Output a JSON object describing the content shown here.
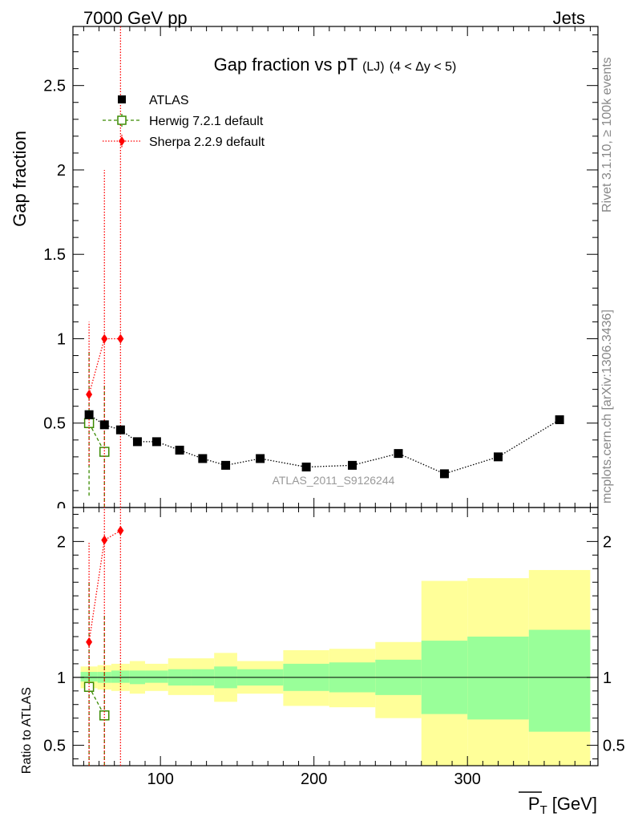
{
  "header": {
    "energy_label": "7000 GeV pp",
    "process_label": "Jets",
    "side_rivet": "Rivet 3.1.10, ≥ 100k events",
    "side_mcplots": "mcplots.cern.ch [arXiv:1306.3436]",
    "analysis_id": "ATLAS_2011_S9126244"
  },
  "chart_data": [
    {
      "type": "scatter",
      "title": "Gap fraction vs pT",
      "title_suffix": "(LJ)",
      "title_cut": "(4 < Δy < 5)",
      "ylabel": "Gap fraction",
      "xlim": [
        43,
        385
      ],
      "ylim": [
        0,
        2.85
      ],
      "yticks": [
        0,
        0.5,
        1,
        1.5,
        2,
        2.5
      ],
      "ytick_labels": [
        "0",
        "0.5",
        "1",
        "1.5",
        "2",
        "2.5"
      ],
      "legend_position": "top-left",
      "series": [
        {
          "name": "ATLAS",
          "color": "#000000",
          "marker": "filled-square",
          "x": [
            53.5,
            63.5,
            74,
            85,
            97.5,
            112.5,
            127.5,
            142.5,
            165,
            195,
            225,
            255,
            285,
            320,
            360
          ],
          "y": [
            0.55,
            0.49,
            0.46,
            0.39,
            0.39,
            0.34,
            0.29,
            0.25,
            0.29,
            0.24,
            0.25,
            0.32,
            0.2,
            0.3,
            0.52
          ]
        },
        {
          "name": "Herwig 7.2.1 default",
          "color": "#3a8a00",
          "marker": "open-square",
          "x": [
            53.5,
            63.5
          ],
          "y": [
            0.5,
            0.33
          ],
          "err_lo": [
            0.07,
            0.0
          ],
          "err_hi": [
            0.93,
            0.72
          ]
        },
        {
          "name": "Sherpa 2.2.9 default",
          "color": "#ff0000",
          "marker": "filled-diamond",
          "x": [
            53.5,
            63.5,
            74
          ],
          "y": [
            0.67,
            1.0,
            1.0
          ],
          "err_lo": [
            0.25,
            0.0,
            0.0
          ],
          "err_hi": [
            1.1,
            2.0,
            2.85
          ]
        }
      ]
    },
    {
      "type": "scatter",
      "ylabel": "Ratio to ATLAS",
      "xlabel": "P_T [GeV]",
      "xlabel_main": "P",
      "xlabel_sub": "T",
      "xlabel_unit": "[GeV]",
      "xlim": [
        43,
        385
      ],
      "ylim": [
        0.35,
        2.25
      ],
      "yticks": [
        0.5,
        1,
        2
      ],
      "ytick_labels": [
        "0.5",
        "1",
        "2"
      ],
      "xticks": [
        100,
        200,
        300
      ],
      "xtick_labels": [
        "100",
        "200",
        "300"
      ],
      "bands": {
        "edges": [
          48,
          59,
          68,
          80,
          90,
          105,
          120,
          135,
          150,
          180,
          210,
          240,
          270,
          300,
          340,
          380
        ],
        "yellow_lo": [
          0.92,
          0.91,
          0.9,
          0.88,
          0.9,
          0.87,
          0.87,
          0.82,
          0.88,
          0.79,
          0.78,
          0.7,
          0.35,
          0.35,
          0.35
        ],
        "yellow_hi": [
          1.08,
          1.09,
          1.1,
          1.12,
          1.1,
          1.14,
          1.14,
          1.18,
          1.12,
          1.2,
          1.21,
          1.26,
          1.71,
          1.73,
          1.79
        ],
        "green_lo": [
          0.97,
          0.96,
          0.96,
          0.95,
          0.96,
          0.94,
          0.94,
          0.92,
          0.94,
          0.9,
          0.89,
          0.87,
          0.73,
          0.69,
          0.6
        ],
        "green_hi": [
          1.04,
          1.04,
          1.05,
          1.05,
          1.05,
          1.06,
          1.06,
          1.08,
          1.06,
          1.1,
          1.11,
          1.13,
          1.27,
          1.3,
          1.35
        ]
      },
      "series": [
        {
          "name": "Herwig 7.2.1 default",
          "color": "#3a8a00",
          "marker": "open-square",
          "x": [
            53.5,
            63.5
          ],
          "y": [
            0.93,
            0.72
          ],
          "err_lo": [
            0.35,
            0.35
          ],
          "err_hi": [
            1.7,
            1.46
          ]
        },
        {
          "name": "Sherpa 2.2.9 default",
          "color": "#ff0000",
          "marker": "filled-diamond",
          "x": [
            53.5,
            63.5,
            74
          ],
          "y": [
            1.26,
            2.01,
            2.08
          ],
          "err_lo": [
            0.35,
            0.35,
            0.35
          ],
          "err_hi": [
            1.99,
            2.25,
            2.25
          ]
        }
      ]
    }
  ]
}
